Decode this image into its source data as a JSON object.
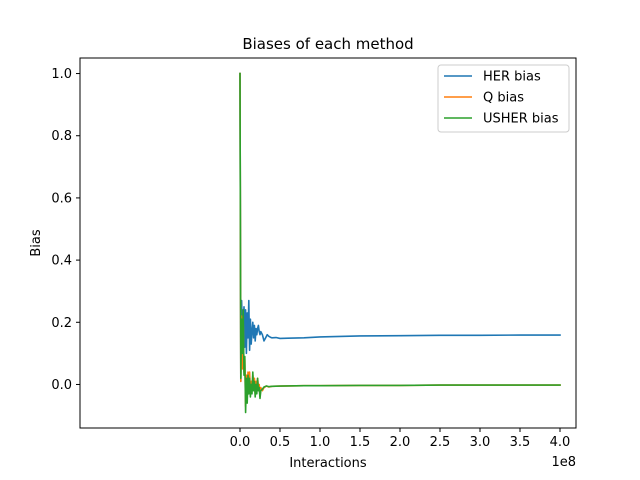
{
  "chart_data": {
    "type": "line",
    "title": "Biases of each method",
    "xlabel": "Interactions",
    "ylabel": "Bias",
    "x_offset_label": "1e8",
    "xlim": [
      -2.0,
      4.2
    ],
    "ylim": [
      -0.14,
      1.05
    ],
    "x_ticks": [
      0,
      0.5,
      1.0,
      1.5,
      2.0,
      2.5,
      3.0,
      3.5,
      4.0
    ],
    "x_tick_labels": [
      "0.0",
      "0.5",
      "1.0",
      "1.5",
      "2.0",
      "2.5",
      "3.0",
      "3.5",
      "4.0"
    ],
    "y_ticks": [
      0.0,
      0.2,
      0.4,
      0.6,
      0.8,
      1.0
    ],
    "y_tick_labels": [
      "0.0",
      "0.2",
      "0.4",
      "0.6",
      "0.8",
      "1.0"
    ],
    "grid": false,
    "legend_position": "top-right",
    "series": [
      {
        "name": "HER bias",
        "color": "#1f77b4",
        "x": [
          0,
          0.01,
          0.02,
          0.03,
          0.05,
          0.06,
          0.07,
          0.08,
          0.09,
          0.1,
          0.11,
          0.12,
          0.13,
          0.14,
          0.15,
          0.16,
          0.17,
          0.18,
          0.19,
          0.2,
          0.21,
          0.22,
          0.23,
          0.24,
          0.25,
          0.26,
          0.28,
          0.3,
          0.32,
          0.34,
          0.36,
          0.38,
          0.4,
          0.45,
          0.5,
          0.6,
          0.8,
          1.0,
          1.5,
          2.0,
          2.5,
          3.0,
          3.5,
          4.0
        ],
        "y": [
          1.0,
          0.01,
          0.27,
          0.17,
          0.25,
          0.12,
          0.24,
          0.1,
          0.23,
          0.15,
          0.27,
          0.11,
          0.21,
          0.13,
          0.17,
          0.2,
          0.15,
          0.19,
          0.14,
          0.18,
          0.16,
          0.18,
          0.19,
          0.17,
          0.16,
          0.17,
          0.16,
          0.14,
          0.15,
          0.16,
          0.155,
          0.152,
          0.15,
          0.151,
          0.148,
          0.149,
          0.15,
          0.153,
          0.156,
          0.157,
          0.158,
          0.158,
          0.159,
          0.159
        ]
      },
      {
        "name": "Q bias",
        "color": "#ff7f0e",
        "x": [
          0,
          0.01,
          0.02,
          0.03,
          0.04,
          0.05,
          0.06,
          0.07,
          0.08,
          0.09,
          0.1,
          0.11,
          0.12,
          0.13,
          0.14,
          0.15,
          0.16,
          0.17,
          0.18,
          0.19,
          0.2,
          0.21,
          0.22,
          0.23,
          0.24,
          0.25,
          0.26,
          0.28,
          0.3,
          0.33,
          0.36,
          0.4,
          0.5,
          0.8,
          1.0,
          1.5,
          2.0,
          2.5,
          3.0,
          3.5,
          4.0
        ],
        "y": [
          1.0,
          0.01,
          0.22,
          0.05,
          0.2,
          0.04,
          0.08,
          -0.07,
          0.03,
          -0.04,
          0.04,
          -0.02,
          0.04,
          -0.03,
          0.01,
          -0.02,
          0.03,
          -0.01,
          0.02,
          -0.03,
          0.01,
          -0.02,
          0.02,
          -0.01,
          0.0,
          -0.04,
          -0.01,
          -0.02,
          -0.01,
          -0.005,
          -0.008,
          -0.006,
          -0.005,
          -0.004,
          -0.004,
          -0.003,
          -0.003,
          -0.002,
          -0.002,
          -0.002,
          -0.002
        ]
      },
      {
        "name": "USHER bias",
        "color": "#2ca02c",
        "x": [
          0,
          0.01,
          0.02,
          0.03,
          0.04,
          0.05,
          0.06,
          0.07,
          0.08,
          0.09,
          0.1,
          0.11,
          0.12,
          0.13,
          0.14,
          0.15,
          0.16,
          0.17,
          0.18,
          0.19,
          0.2,
          0.21,
          0.22,
          0.23,
          0.24,
          0.25,
          0.26,
          0.28,
          0.3,
          0.33,
          0.36,
          0.4,
          0.5,
          0.8,
          1.0,
          1.5,
          2.0,
          2.5,
          3.0,
          3.5,
          4.0
        ],
        "y": [
          1.0,
          0.02,
          0.21,
          0.1,
          0.24,
          0.03,
          0.09,
          -0.09,
          0.02,
          -0.06,
          0.03,
          -0.03,
          0.02,
          -0.04,
          0.0,
          -0.03,
          0.04,
          -0.02,
          0.01,
          -0.04,
          0.0,
          -0.03,
          0.02,
          -0.02,
          -0.01,
          -0.045,
          -0.02,
          -0.015,
          -0.008,
          -0.005,
          -0.007,
          -0.006,
          -0.005,
          -0.004,
          -0.004,
          -0.003,
          -0.003,
          -0.002,
          -0.002,
          -0.002,
          -0.002
        ]
      }
    ]
  }
}
